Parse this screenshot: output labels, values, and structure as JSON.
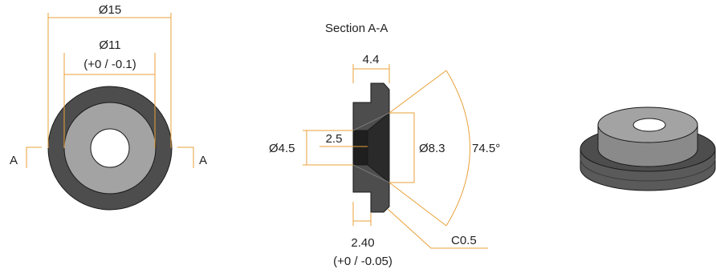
{
  "front_view": {
    "outer_diameter": "Ø15",
    "inner_diameter": "Ø11",
    "inner_tolerance": "(+0 / -0.1)",
    "section_marker_left": "A",
    "section_marker_right": "A"
  },
  "section_view": {
    "title": "Section A-A",
    "width_dim": "4.4",
    "hole_diameter": "Ø4.5",
    "hole_depth": "2.5",
    "cone_diameter": "Ø8.3",
    "cone_angle": "74.5°",
    "flange_thickness": "2.40",
    "flange_tolerance": "(+0 / -0.05)",
    "chamfer": "C0.5"
  },
  "colors": {
    "dimension_line": "#e8a13a",
    "outer_ring": "#4d4d4d",
    "inner_face": "#a3a3a3",
    "outline": "#1a1a1a"
  }
}
